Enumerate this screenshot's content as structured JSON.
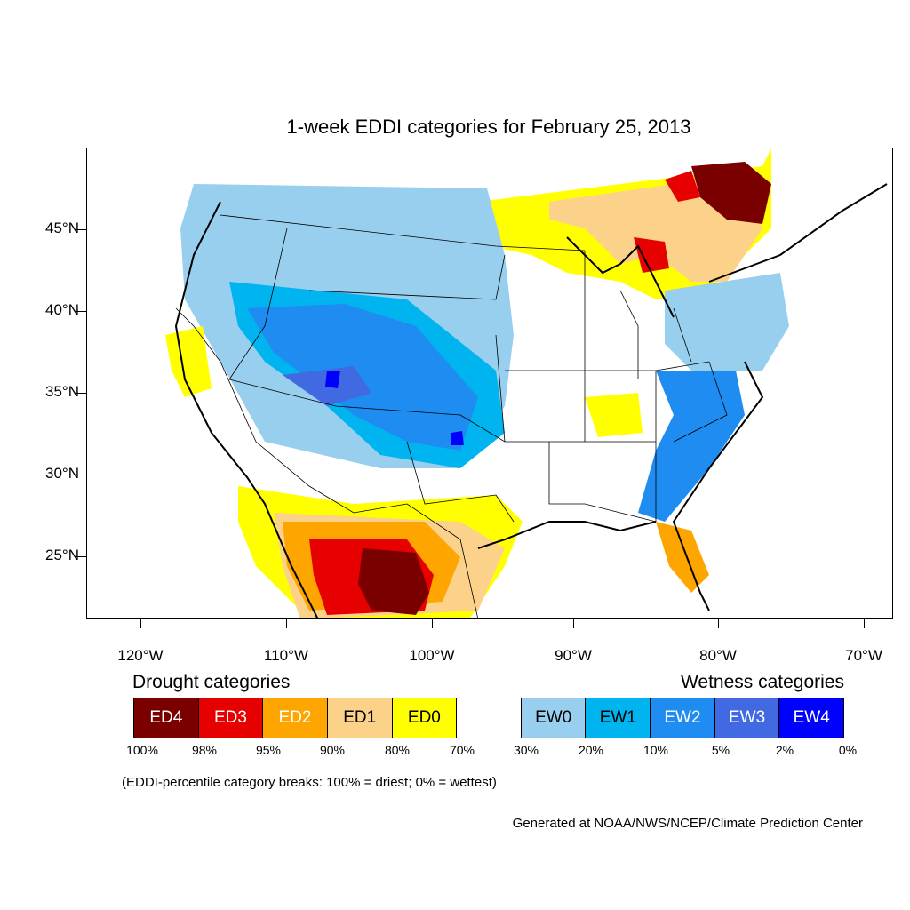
{
  "title": "1-week EDDI categories for February 25, 2013",
  "axes": {
    "lat_labels": [
      "45°N",
      "40°N",
      "35°N",
      "30°N",
      "25°N"
    ],
    "lon_labels": [
      "120°W",
      "110°W",
      "100°W",
      "90°W",
      "80°W",
      "70°W"
    ]
  },
  "legend": {
    "drought_label": "Drought categories",
    "wetness_label": "Wetness categories",
    "categories": [
      {
        "label": "ED4",
        "color": "#7a0000",
        "text_color": "#ffffff"
      },
      {
        "label": "ED3",
        "color": "#e60000",
        "text_color": "#ffffff"
      },
      {
        "label": "ED2",
        "color": "#ffa500",
        "text_color": "#ffffff"
      },
      {
        "label": "ED1",
        "color": "#fcd28a",
        "text_color": "#000000"
      },
      {
        "label": "ED0",
        "color": "#ffff00",
        "text_color": "#000000"
      },
      {
        "label": "",
        "color": "#ffffff",
        "text_color": "#000000"
      },
      {
        "label": "EW0",
        "color": "#99cfee",
        "text_color": "#000000"
      },
      {
        "label": "EW1",
        "color": "#00b4f0",
        "text_color": "#000000"
      },
      {
        "label": "EW2",
        "color": "#1e8cf0",
        "text_color": "#ffffff"
      },
      {
        "label": "EW3",
        "color": "#4169e1",
        "text_color": "#ffffff"
      },
      {
        "label": "EW4",
        "color": "#0000ff",
        "text_color": "#ffffff"
      }
    ],
    "breaks": [
      "100%",
      "98%",
      "95%",
      "90%",
      "80%",
      "70%",
      "30%",
      "20%",
      "10%",
      "5%",
      "2%",
      "0%"
    ]
  },
  "note": "(EDDI-percentile category breaks: 100% = driest; 0% = wettest)",
  "credit": "Generated at NOAA/NWS/NCEP/Climate Prediction Center"
}
